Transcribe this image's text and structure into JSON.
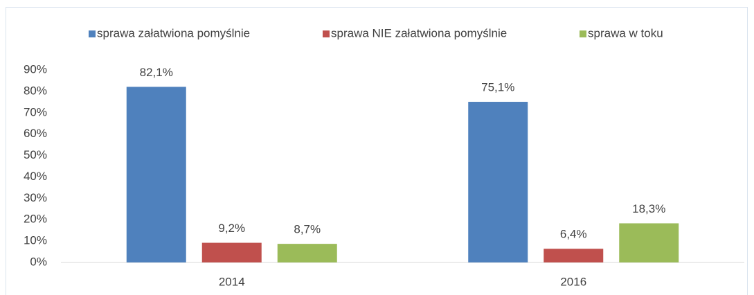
{
  "chart_data": {
    "type": "bar",
    "categories": [
      "2014",
      "2016"
    ],
    "series": [
      {
        "name": "sprawa załatwiona pomyślnie",
        "color": "#4f81bd",
        "values": [
          82.1,
          75.1
        ],
        "value_labels": [
          "82,1%",
          "75,1%"
        ]
      },
      {
        "name": "sprawa NIE załatwiona pomyślnie",
        "color": "#c0504d",
        "values": [
          9.2,
          6.4
        ],
        "value_labels": [
          "9,2%",
          "6,4%"
        ]
      },
      {
        "name": "sprawa w toku",
        "color": "#9bbb59",
        "values": [
          8.7,
          18.3
        ],
        "value_labels": [
          "8,7%",
          "18,3%"
        ]
      }
    ],
    "ylim": [
      0,
      90
    ],
    "yticks": [
      {
        "value": 0,
        "label": "0%"
      },
      {
        "value": 10,
        "label": "10%"
      },
      {
        "value": 20,
        "label": "20%"
      },
      {
        "value": 30,
        "label": "30%"
      },
      {
        "value": 40,
        "label": "40%"
      },
      {
        "value": 50,
        "label": "50%"
      },
      {
        "value": 60,
        "label": "60%"
      },
      {
        "value": 70,
        "label": "70%"
      },
      {
        "value": 80,
        "label": "80%"
      },
      {
        "value": 90,
        "label": "90%"
      }
    ],
    "legend": "top",
    "grid": false
  }
}
